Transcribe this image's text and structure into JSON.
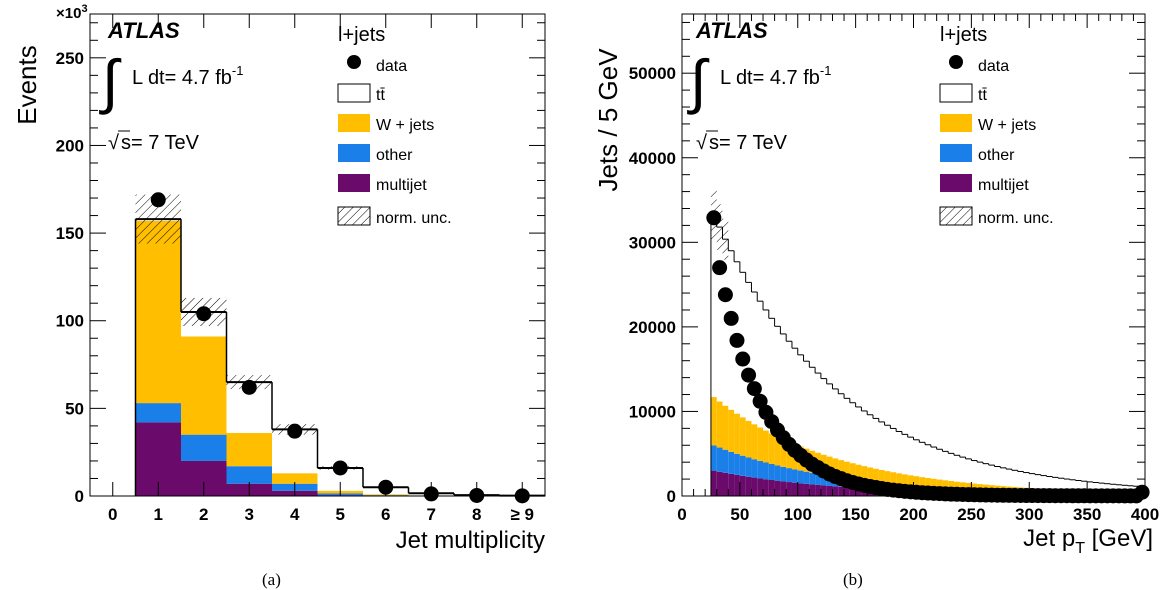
{
  "colors": {
    "ttbar": "#ffffff",
    "wjets": "#ffbf00",
    "other": "#1a7fe8",
    "multijet": "#6a0a6a",
    "data": "#000000"
  },
  "chart_data": [
    {
      "type": "bar",
      "stacked": true,
      "atlas_label": "ATLAS",
      "channel_label": "l+jets",
      "lumi_label": "L dt= 4.7 fb",
      "lumi_sup": "-1",
      "energy_label": "s= 7 TeV",
      "ylabel": "Events",
      "xlabel": "Jet multiplicity",
      "y_exponent": "×10",
      "y_exponent_sup": "3",
      "caption": "(a)",
      "ylim": [
        0,
        275
      ],
      "xlim": [
        -0.5,
        9.5
      ],
      "yticks": [
        "0",
        "50",
        "100",
        "150",
        "200",
        "250"
      ],
      "ytick_values": [
        0,
        50,
        100,
        150,
        200,
        250
      ],
      "categories": [
        "0",
        "1",
        "2",
        "3",
        "4",
        "5",
        "6",
        "7",
        "8",
        "≥ 9"
      ],
      "legend": {
        "data": "data",
        "ttbar": "tt̄",
        "wjets": "W + jets",
        "other": "other",
        "multijet": "multijet",
        "unc": "norm. unc."
      },
      "series": [
        {
          "name": "multijet",
          "values": [
            0,
            42,
            20,
            7,
            3,
            0.5,
            0.2,
            0.1,
            0,
            0
          ]
        },
        {
          "name": "other",
          "values": [
            0,
            11,
            15,
            10,
            4,
            1,
            0.3,
            0.1,
            0,
            0
          ]
        },
        {
          "name": "W + jets",
          "values": [
            0,
            104,
            56,
            19,
            6,
            1.5,
            0.5,
            0.2,
            0.1,
            0
          ]
        },
        {
          "name": "tt̄",
          "values": [
            0,
            1,
            14,
            29,
            25,
            13,
            4,
            1.2,
            0.4,
            0.2
          ]
        }
      ],
      "uncertainty": [
        0,
        14,
        8,
        4,
        3,
        1,
        0.5,
        0.2,
        0.1,
        0
      ],
      "data": [
        null,
        169,
        104,
        62,
        37,
        16,
        5,
        1.2,
        0.3,
        0.1
      ]
    },
    {
      "type": "bar",
      "stacked": true,
      "atlas_label": "ATLAS",
      "channel_label": "l+jets",
      "lumi_label": "L dt= 4.7 fb",
      "lumi_sup": "-1",
      "energy_label": "s= 7 TeV",
      "ylabel": "Jets / 5 GeV",
      "xlabel": "Jet p",
      "xlabel_sub": "T",
      "xlabel_unit": " [GeV]",
      "caption": "(b)",
      "ylim": [
        0,
        57000
      ],
      "xlim": [
        0,
        400
      ],
      "yticks": [
        "0",
        "10000",
        "20000",
        "30000",
        "40000",
        "50000"
      ],
      "ytick_values": [
        0,
        10000,
        20000,
        30000,
        40000,
        50000
      ],
      "xticks": [
        "0",
        "50",
        "100",
        "150",
        "200",
        "250",
        "300",
        "350",
        "400"
      ],
      "xtick_values": [
        0,
        50,
        100,
        150,
        200,
        250,
        300,
        350,
        400
      ],
      "legend": {
        "data": "data",
        "ttbar": "tt̄",
        "wjets": "W + jets",
        "other": "other",
        "multijet": "multijet",
        "unc": "norm. unc."
      },
      "bin_width": 5,
      "first_bin_low": 25,
      "n_bins": 75,
      "data": [
        {
          "x": 27.5,
          "y": 32900
        },
        {
          "x": 32.5,
          "y": 27000
        },
        {
          "x": 37.5,
          "y": 23800
        },
        {
          "x": 42.5,
          "y": 21000
        },
        {
          "x": 47.5,
          "y": 18400
        },
        {
          "x": 52.5,
          "y": 16200
        },
        {
          "x": 57.5,
          "y": 14300
        },
        {
          "x": 62.5,
          "y": 12700
        },
        {
          "x": 67.5,
          "y": 11200
        },
        {
          "x": 72.5,
          "y": 9900
        },
        {
          "x": 77.5,
          "y": 8800
        },
        {
          "x": 82.5,
          "y": 7800
        },
        {
          "x": 87.5,
          "y": 6900
        },
        {
          "x": 92.5,
          "y": 6100
        },
        {
          "x": 97.5,
          "y": 5400
        },
        {
          "x": 102.5,
          "y": 4800
        },
        {
          "x": 107.5,
          "y": 4250
        },
        {
          "x": 112.5,
          "y": 3750
        },
        {
          "x": 117.5,
          "y": 3350
        },
        {
          "x": 122.5,
          "y": 2950
        },
        {
          "x": 127.5,
          "y": 2600
        },
        {
          "x": 132.5,
          "y": 2300
        },
        {
          "x": 137.5,
          "y": 2050
        },
        {
          "x": 142.5,
          "y": 1800
        },
        {
          "x": 147.5,
          "y": 1600
        },
        {
          "x": 152.5,
          "y": 1420
        },
        {
          "x": 157.5,
          "y": 1260
        },
        {
          "x": 162.5,
          "y": 1120
        },
        {
          "x": 167.5,
          "y": 1000
        },
        {
          "x": 172.5,
          "y": 880
        },
        {
          "x": 177.5,
          "y": 780
        },
        {
          "x": 182.5,
          "y": 700
        },
        {
          "x": 187.5,
          "y": 620
        },
        {
          "x": 192.5,
          "y": 550
        },
        {
          "x": 197.5,
          "y": 490
        },
        {
          "x": 202.5,
          "y": 440
        },
        {
          "x": 207.5,
          "y": 390
        },
        {
          "x": 212.5,
          "y": 350
        },
        {
          "x": 217.5,
          "y": 310
        },
        {
          "x": 222.5,
          "y": 280
        },
        {
          "x": 227.5,
          "y": 250
        },
        {
          "x": 232.5,
          "y": 220
        },
        {
          "x": 237.5,
          "y": 200
        },
        {
          "x": 242.5,
          "y": 180
        },
        {
          "x": 247.5,
          "y": 160
        },
        {
          "x": 252.5,
          "y": 145
        },
        {
          "x": 257.5,
          "y": 130
        },
        {
          "x": 262.5,
          "y": 115
        },
        {
          "x": 267.5,
          "y": 105
        },
        {
          "x": 272.5,
          "y": 95
        },
        {
          "x": 277.5,
          "y": 85
        },
        {
          "x": 282.5,
          "y": 77
        },
        {
          "x": 287.5,
          "y": 70
        },
        {
          "x": 292.5,
          "y": 63
        },
        {
          "x": 297.5,
          "y": 57
        },
        {
          "x": 302.5,
          "y": 52
        },
        {
          "x": 307.5,
          "y": 47
        },
        {
          "x": 312.5,
          "y": 43
        },
        {
          "x": 317.5,
          "y": 39
        },
        {
          "x": 322.5,
          "y": 36
        },
        {
          "x": 327.5,
          "y": 33
        },
        {
          "x": 332.5,
          "y": 30
        },
        {
          "x": 337.5,
          "y": 27
        },
        {
          "x": 342.5,
          "y": 25
        },
        {
          "x": 347.5,
          "y": 23
        },
        {
          "x": 352.5,
          "y": 21
        },
        {
          "x": 357.5,
          "y": 19
        },
        {
          "x": 362.5,
          "y": 17
        },
        {
          "x": 367.5,
          "y": 16
        },
        {
          "x": 372.5,
          "y": 15
        },
        {
          "x": 377.5,
          "y": 14
        },
        {
          "x": 382.5,
          "y": 13
        },
        {
          "x": 387.5,
          "y": 12
        },
        {
          "x": 392.5,
          "y": 11
        },
        {
          "x": 397.5,
          "y": 450
        }
      ],
      "series": [
        {
          "name": "multijet",
          "first_value": 3000,
          "decay": 0.955
        },
        {
          "name": "other",
          "first_value": 3000,
          "decay": 0.955
        },
        {
          "name": "W + jets",
          "first_value": 5700,
          "decay": 0.955
        },
        {
          "name": "tt̄",
          "first_value": 21600,
          "decay": 0.955
        }
      ],
      "uncertainty_first": 3000
    }
  ]
}
